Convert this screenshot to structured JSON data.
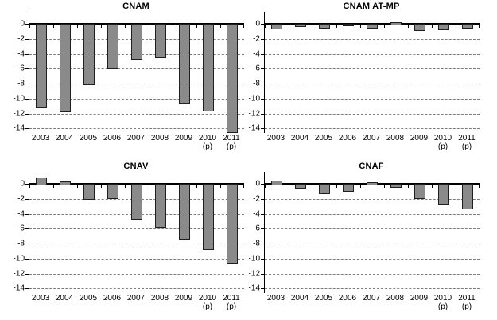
{
  "page": {
    "background_color": "#ffffff",
    "axis_color": "#000000",
    "grid_color": "#7d7d7d"
  },
  "chart_data": [
    {
      "type": "bar",
      "title": "CNAM",
      "categories": [
        "2003",
        "2004",
        "2005",
        "2006",
        "2007",
        "2008",
        "2009",
        "2010",
        "2011"
      ],
      "category_notes": [
        "",
        "",
        "",
        "",
        "",
        "",
        "",
        "(p)",
        "(p)"
      ],
      "values": [
        -11.1,
        -11.6,
        -8.0,
        -5.9,
        -4.6,
        -4.4,
        -10.6,
        -11.5,
        -14.4
      ],
      "xlabel": "",
      "ylabel": "",
      "ylim": [
        -14.6,
        1.6
      ],
      "yticks": [
        0,
        -2,
        -4,
        -6,
        -8,
        -10,
        -12,
        -14
      ],
      "grid": true,
      "legend_position": "none",
      "bar_color": "#8a8a8a",
      "bar_border_color": "#1f1f1f"
    },
    {
      "type": "bar",
      "title": "CNAM AT-MP",
      "categories": [
        "2003",
        "2004",
        "2005",
        "2006",
        "2007",
        "2008",
        "2009",
        "2010",
        "2011"
      ],
      "category_notes": [
        "",
        "",
        "",
        "",
        "",
        "",
        "",
        "(p)",
        "(p)"
      ],
      "values": [
        -0.5,
        -0.2,
        -0.4,
        -0.1,
        -0.4,
        0.2,
        -0.7,
        -0.6,
        -0.4
      ],
      "xlabel": "",
      "ylabel": "",
      "ylim": [
        -14.6,
        1.6
      ],
      "yticks": [
        0,
        -2,
        -4,
        -6,
        -8,
        -10,
        -12,
        -14
      ],
      "grid": true,
      "legend_position": "none",
      "bar_color": "#8a8a8a",
      "bar_border_color": "#1f1f1f"
    },
    {
      "type": "bar",
      "title": "CNAV",
      "categories": [
        "2003",
        "2004",
        "2005",
        "2006",
        "2007",
        "2008",
        "2009",
        "2010",
        "2011"
      ],
      "category_notes": [
        "",
        "",
        "",
        "",
        "",
        "",
        "",
        "(p)",
        "(p)"
      ],
      "values": [
        0.9,
        0.3,
        -1.9,
        -1.8,
        -4.6,
        -5.6,
        -7.2,
        -8.6,
        -10.5
      ],
      "xlabel": "",
      "ylabel": "",
      "ylim": [
        -14.6,
        1.6
      ],
      "yticks": [
        0,
        -2,
        -4,
        -6,
        -8,
        -10,
        -12,
        -14
      ],
      "grid": true,
      "legend_position": "none",
      "bar_color": "#8a8a8a",
      "bar_border_color": "#1f1f1f"
    },
    {
      "type": "bar",
      "title": "CNAF",
      "categories": [
        "2003",
        "2004",
        "2005",
        "2006",
        "2007",
        "2008",
        "2009",
        "2010",
        "2011"
      ],
      "category_notes": [
        "",
        "",
        "",
        "",
        "",
        "",
        "",
        "(p)",
        "(p)"
      ],
      "values": [
        0.4,
        -0.4,
        -1.2,
        -0.9,
        0.2,
        -0.3,
        -1.8,
        -2.6,
        -3.2
      ],
      "xlabel": "",
      "ylabel": "",
      "ylim": [
        -14.6,
        1.6
      ],
      "yticks": [
        0,
        -2,
        -4,
        -6,
        -8,
        -10,
        -12,
        -14
      ],
      "grid": true,
      "legend_position": "none",
      "bar_color": "#8a8a8a",
      "bar_border_color": "#1f1f1f"
    }
  ]
}
